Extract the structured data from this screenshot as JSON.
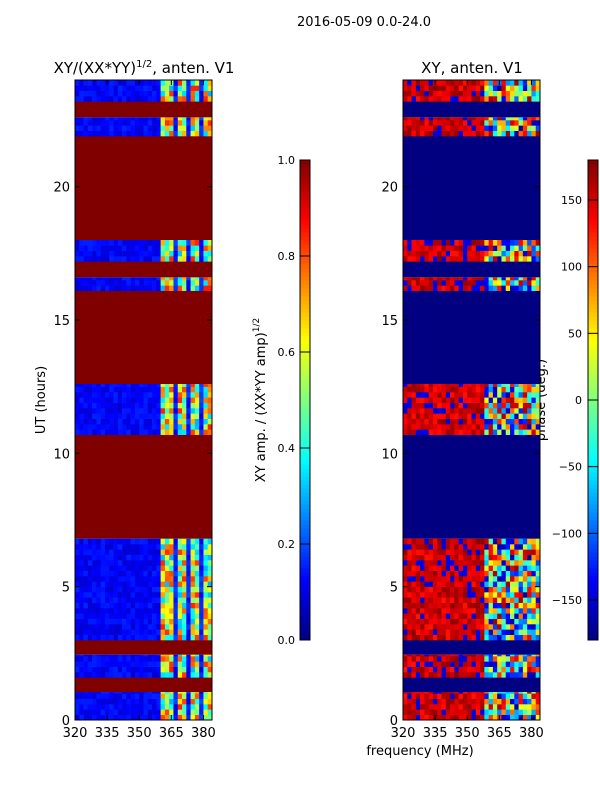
{
  "suptitle": "2016-05-09 0.0-24.0",
  "chart_data": [
    {
      "type": "heatmap",
      "title_main": "XY/(XX*YY)",
      "title_sup": "1/2",
      "title_rest": ", anten. V1",
      "xlabel": "",
      "ylabel": "UT (hours)",
      "xlim": [
        320,
        384
      ],
      "ylim": [
        0,
        24
      ],
      "xticks": [
        320,
        335,
        350,
        365,
        380
      ],
      "yticks": [
        0,
        5,
        10,
        15,
        20
      ],
      "flag_value": 1.0,
      "bands": [
        [
          0,
          1.05,
          "data"
        ],
        [
          1.05,
          1.6,
          "flagged"
        ],
        [
          1.6,
          2.45,
          "data"
        ],
        [
          2.45,
          3.0,
          "flagged"
        ],
        [
          3.0,
          6.8,
          "data"
        ],
        [
          6.8,
          10.7,
          "flagged"
        ],
        [
          10.7,
          12.6,
          "data"
        ],
        [
          12.6,
          16.1,
          "flagged"
        ],
        [
          16.1,
          16.6,
          "data"
        ],
        [
          16.6,
          17.2,
          "flagged"
        ],
        [
          17.2,
          18.0,
          "data"
        ],
        [
          18.0,
          21.9,
          "flagged"
        ],
        [
          21.9,
          22.6,
          "data"
        ],
        [
          22.6,
          23.2,
          "flagged"
        ],
        [
          23.2,
          24,
          "data"
        ]
      ],
      "colorbar": {
        "label_main": "XY amp. / (XX*YY amp)",
        "label_sup": "1/2",
        "range": [
          0,
          1
        ],
        "ticks": [
          "0.0",
          "0.2",
          "0.4",
          "0.6",
          "0.8",
          "1.0"
        ]
      }
    },
    {
      "type": "heatmap",
      "title_main": "XY, anten. V1",
      "xlabel": "frequency (MHz)",
      "ylabel": "",
      "xlim": [
        320,
        384
      ],
      "ylim": [
        0,
        24
      ],
      "xticks": [
        320,
        335,
        350,
        365,
        380
      ],
      "yticks": [
        0,
        5,
        10,
        15,
        20
      ],
      "flag_value": -180,
      "bands": [
        [
          0,
          1.05,
          "data"
        ],
        [
          1.05,
          1.6,
          "flagged"
        ],
        [
          1.6,
          2.45,
          "data"
        ],
        [
          2.45,
          3.0,
          "flagged"
        ],
        [
          3.0,
          6.8,
          "data"
        ],
        [
          6.8,
          10.7,
          "flagged"
        ],
        [
          10.7,
          12.6,
          "data"
        ],
        [
          12.6,
          16.1,
          "flagged"
        ],
        [
          16.1,
          16.6,
          "data"
        ],
        [
          16.6,
          17.2,
          "flagged"
        ],
        [
          17.2,
          18.0,
          "data"
        ],
        [
          18.0,
          21.9,
          "flagged"
        ],
        [
          21.9,
          22.6,
          "data"
        ],
        [
          22.6,
          23.2,
          "flagged"
        ],
        [
          23.2,
          24,
          "data"
        ]
      ],
      "colorbar": {
        "label_main": "phase (deg.)",
        "range": [
          -180,
          180
        ],
        "ticks": [
          "-150",
          "-100",
          "-50",
          "0",
          "50",
          "100",
          "150"
        ]
      }
    }
  ]
}
